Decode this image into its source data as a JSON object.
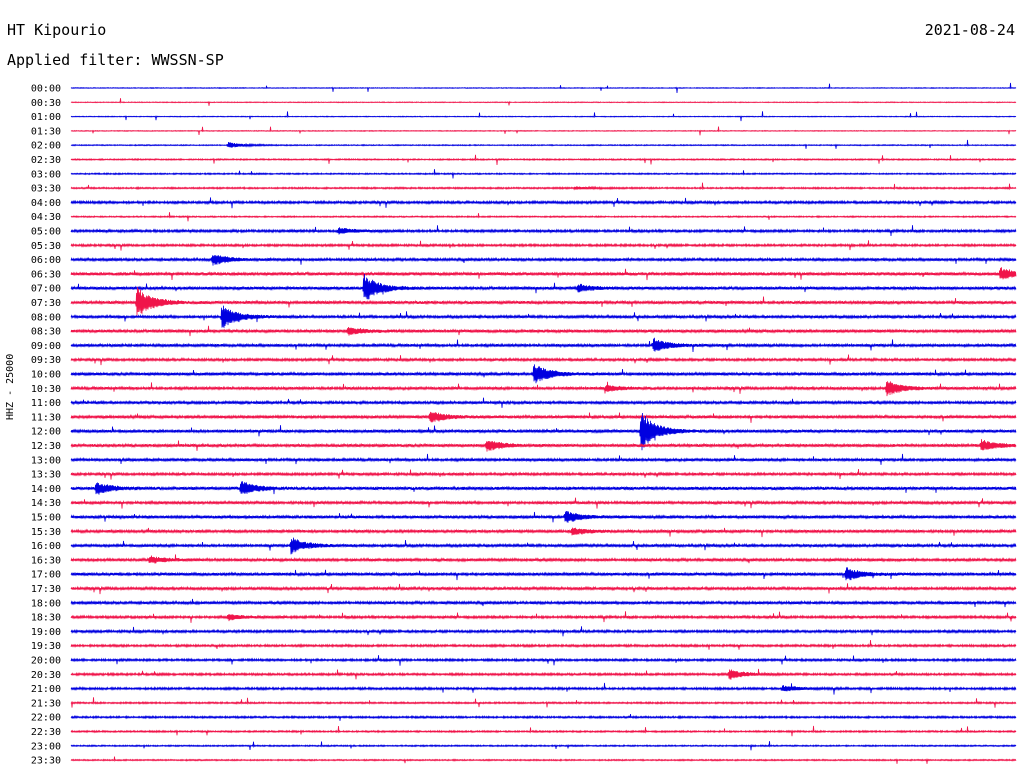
{
  "header": {
    "station": "HT Kipourio",
    "date": "2021-08-24",
    "filter": "Applied filter: WWSSN-SP"
  },
  "chart_data": {
    "type": "line",
    "title": "HT Kipourio",
    "ylabel": "HHZ - 25000",
    "colors": [
      "#0000e0",
      "#f0144a"
    ],
    "rows": [
      "00:00",
      "00:30",
      "01:00",
      "01:30",
      "02:00",
      "02:30",
      "03:00",
      "03:30",
      "04:00",
      "04:30",
      "05:00",
      "05:30",
      "06:00",
      "06:30",
      "07:00",
      "07:30",
      "08:00",
      "08:30",
      "09:00",
      "09:30",
      "10:00",
      "10:30",
      "11:00",
      "11:30",
      "12:00",
      "12:30",
      "13:00",
      "13:30",
      "14:00",
      "14:30",
      "15:00",
      "15:30",
      "16:00",
      "16:30",
      "17:00",
      "17:30",
      "18:00",
      "18:30",
      "19:00",
      "19:30",
      "20:00",
      "20:30",
      "21:00",
      "21:30",
      "22:00",
      "22:30",
      "23:00",
      "23:30"
    ],
    "noise_level": [
      0.3,
      0.3,
      0.3,
      0.3,
      0.4,
      0.5,
      0.5,
      0.6,
      0.9,
      0.5,
      0.9,
      0.8,
      1.0,
      1.2,
      1.1,
      1.1,
      1.0,
      1.1,
      1.0,
      0.9,
      1.1,
      1.0,
      1.0,
      1.1,
      1.1,
      1.1,
      1.0,
      0.9,
      1.2,
      1.0,
      1.1,
      1.0,
      1.0,
      1.0,
      1.1,
      1.0,
      1.0,
      0.9,
      0.9,
      0.8,
      0.8,
      0.8,
      0.8,
      0.6,
      0.7,
      0.6,
      0.5,
      0.5
    ],
    "events": [
      {
        "row": 4,
        "minute": 5.0,
        "amp": 3.0
      },
      {
        "row": 7,
        "minute": 16.0,
        "amp": 1.5
      },
      {
        "row": 10,
        "minute": 8.5,
        "amp": 3.0
      },
      {
        "row": 12,
        "minute": 4.5,
        "amp": 6.0
      },
      {
        "row": 13,
        "minute": 29.5,
        "amp": 6.0
      },
      {
        "row": 14,
        "minute": 9.3,
        "amp": 14.0
      },
      {
        "row": 14,
        "minute": 16.1,
        "amp": 4.0
      },
      {
        "row": 15,
        "minute": 2.1,
        "amp": 16.0
      },
      {
        "row": 16,
        "minute": 4.8,
        "amp": 12.0
      },
      {
        "row": 17,
        "minute": 8.8,
        "amp": 4.0
      },
      {
        "row": 18,
        "minute": 18.5,
        "amp": 7.0
      },
      {
        "row": 20,
        "minute": 14.7,
        "amp": 10.0
      },
      {
        "row": 21,
        "minute": 17.0,
        "amp": 3.0
      },
      {
        "row": 21,
        "minute": 25.9,
        "amp": 8.0
      },
      {
        "row": 23,
        "minute": 11.4,
        "amp": 6.0
      },
      {
        "row": 24,
        "minute": 18.1,
        "amp": 20.0
      },
      {
        "row": 25,
        "minute": 13.2,
        "amp": 6.0
      },
      {
        "row": 25,
        "minute": 28.9,
        "amp": 6.0
      },
      {
        "row": 28,
        "minute": 0.8,
        "amp": 6.0
      },
      {
        "row": 28,
        "minute": 5.4,
        "amp": 7.0
      },
      {
        "row": 30,
        "minute": 15.7,
        "amp": 6.0
      },
      {
        "row": 31,
        "minute": 15.9,
        "amp": 4.0
      },
      {
        "row": 32,
        "minute": 7.0,
        "amp": 8.0
      },
      {
        "row": 33,
        "minute": 2.5,
        "amp": 4.0
      },
      {
        "row": 34,
        "minute": 24.6,
        "amp": 7.0
      },
      {
        "row": 37,
        "minute": 5.0,
        "amp": 3.0
      },
      {
        "row": 41,
        "minute": 20.9,
        "amp": 5.0
      },
      {
        "row": 42,
        "minute": 22.6,
        "amp": 3.0
      }
    ]
  }
}
